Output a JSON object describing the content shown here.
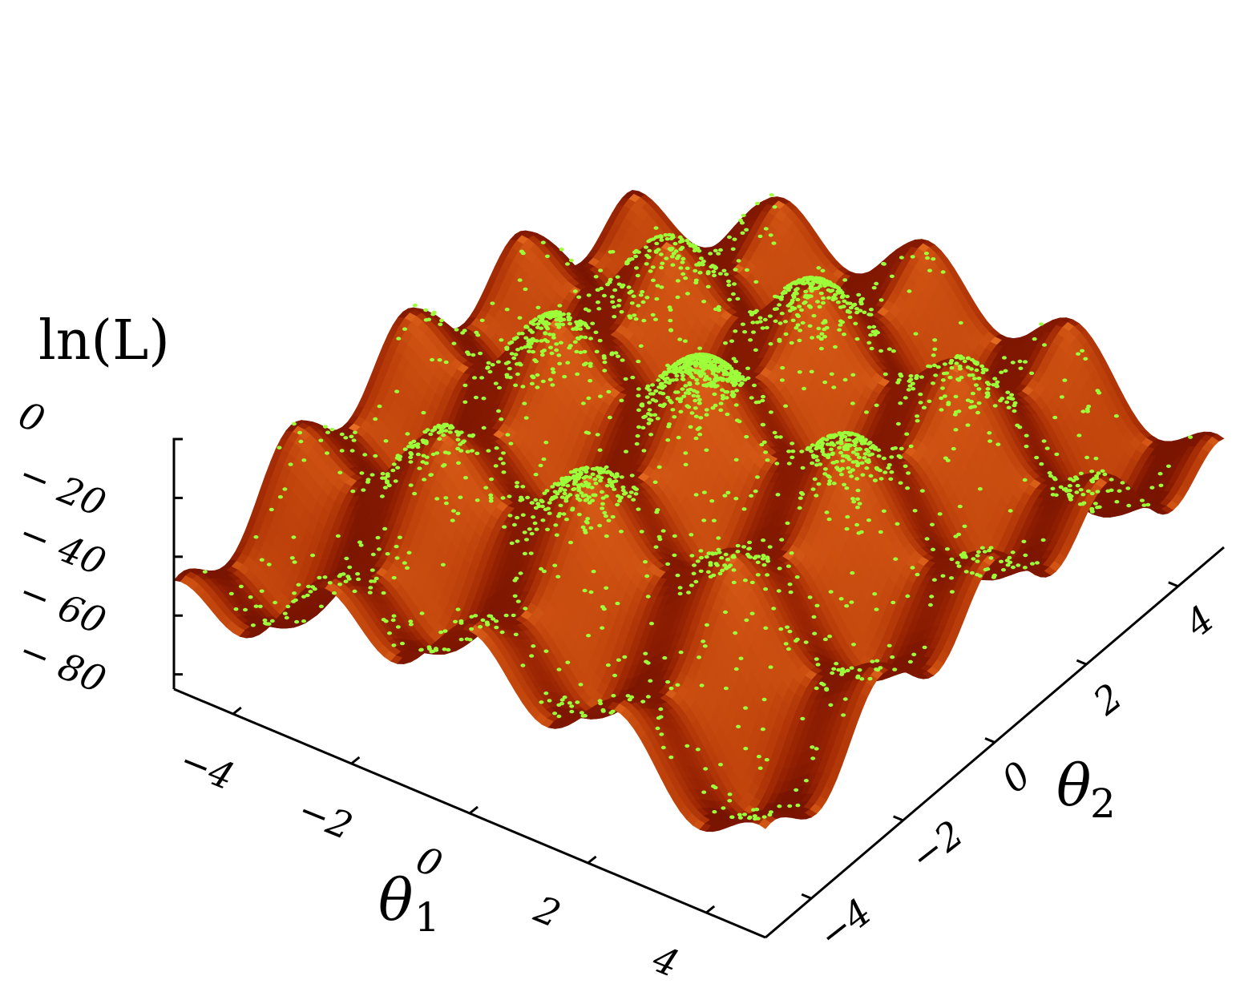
{
  "chart_data": {
    "type": "surface3d",
    "xlabel": "θ",
    "xlabel_sub": "1",
    "ylabel": "θ",
    "ylabel_sub": "2",
    "zlabel": "ln(L)",
    "xlim": [
      -5,
      5
    ],
    "ylim": [
      -5,
      5
    ],
    "zlim": [
      -85,
      0
    ],
    "x_ticks": [
      -4,
      -2,
      0,
      2,
      4
    ],
    "x_tick_labels": [
      "−4",
      "−2",
      "0",
      "2",
      "4"
    ],
    "y_ticks": [
      -4,
      -2,
      0,
      2,
      4
    ],
    "y_tick_labels": [
      "−4",
      "−2",
      "0",
      "2",
      "4"
    ],
    "z_ticks": [
      0,
      -20,
      -40,
      -60,
      -80
    ],
    "z_tick_labels": [
      "0",
      "− 20",
      "− 40",
      "− 60",
      "− 80"
    ],
    "surface": {
      "description": "multimodal egg-box likelihood surface",
      "formula": "-(x^2 + y^2) - 10*(2 - cos(2.5x) - cos(2.5y))",
      "colormap": [
        "#3a0000",
        "#8b1a00",
        "#d2521a",
        "#f28c3a",
        "#ffb36b"
      ]
    },
    "series": [
      {
        "marker": "point",
        "color": "#9cff3a"
      }
    ]
  }
}
